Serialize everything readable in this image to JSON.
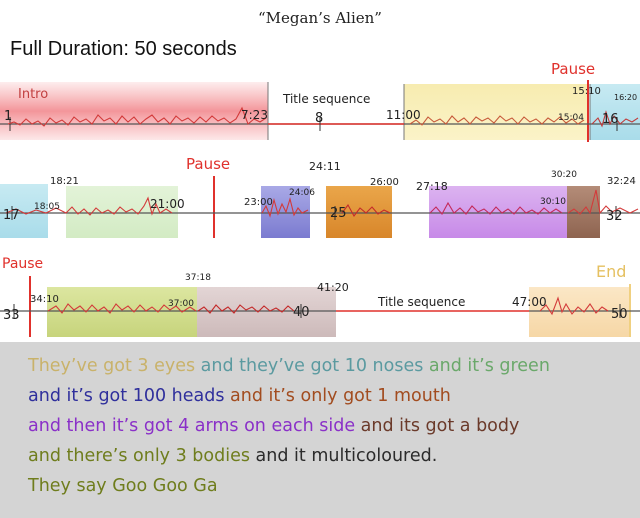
{
  "title": "“Megan’s Alien”",
  "subtitle": "Full Duration: 50 seconds",
  "colors": {
    "red": "#e0312c",
    "dark": "#2b2b2b",
    "axis": "#555555",
    "blue": "#2f2f9c",
    "brown": "#a24c1f",
    "purple": "#8a30c8",
    "olive": "#6f7d1d",
    "teal": "#5b9aa0",
    "gold": "#c9b26a",
    "green": "#6aa86a"
  },
  "rows": [
    {
      "labels": [
        {
          "text": "Intro",
          "color": "#c24040"
        },
        {
          "text": "Title sequence",
          "color": "#222"
        },
        {
          "text": "Pause",
          "color": "#e0312c"
        },
        {
          "text": "7:23",
          "color": "#222"
        },
        {
          "text": "11:00",
          "color": "#222"
        },
        {
          "text": "15:10",
          "color": "#222"
        },
        {
          "text": "15:04",
          "color": "#222"
        },
        {
          "text": "16:20",
          "color": "#222"
        },
        {
          "text": "1",
          "color": "#222"
        },
        {
          "text": "8",
          "color": "#222"
        },
        {
          "text": "16",
          "color": "#222"
        }
      ]
    },
    {
      "labels": [
        {
          "text": "Pause",
          "color": "#e0312c"
        },
        {
          "text": "18:21",
          "color": "#222"
        },
        {
          "text": "18:05",
          "color": "#222"
        },
        {
          "text": "21:00",
          "color": "#222"
        },
        {
          "text": "24:11",
          "color": "#222"
        },
        {
          "text": "24:06",
          "color": "#222"
        },
        {
          "text": "23:00",
          "color": "#222"
        },
        {
          "text": "26:00",
          "color": "#222"
        },
        {
          "text": "27:18",
          "color": "#222"
        },
        {
          "text": "30:20",
          "color": "#222"
        },
        {
          "text": "30:10",
          "color": "#222"
        },
        {
          "text": "32:24",
          "color": "#222"
        },
        {
          "text": "17",
          "color": "#222"
        },
        {
          "text": "25",
          "color": "#222"
        },
        {
          "text": "32",
          "color": "#222"
        }
      ]
    },
    {
      "labels": [
        {
          "text": "Pause",
          "color": "#e0312c"
        },
        {
          "text": "End",
          "color": "#e5c060"
        },
        {
          "text": "Title sequence",
          "color": "#222"
        },
        {
          "text": "34:10",
          "color": "#222"
        },
        {
          "text": "37:18",
          "color": "#222"
        },
        {
          "text": "37:00",
          "color": "#222"
        },
        {
          "text": "41:20",
          "color": "#222"
        },
        {
          "text": "47:00",
          "color": "#222"
        },
        {
          "text": "33",
          "color": "#222"
        },
        {
          "text": "40",
          "color": "#222"
        },
        {
          "text": "50",
          "color": "#222"
        }
      ]
    }
  ],
  "story": [
    [
      {
        "text": "They’ve got 3 eyes",
        "color": "#c9b26a"
      },
      {
        "text": "  and they’ve got 10 noses",
        "color": "#5b9aa0"
      },
      {
        "text": " and it’s green",
        "color": "#6aa86a"
      }
    ],
    [
      {
        "text": "and it’s got 100 heads",
        "color": "#2f2f9c"
      },
      {
        "text": " and it’s only got 1 mouth",
        "color": "#a24c1f"
      }
    ],
    [
      {
        "text": "and then it’s got 4 arms on each side",
        "color": "#8a30c8"
      },
      {
        "text": " and its got a body",
        "color": "#6b3a2a"
      }
    ],
    [
      {
        "text": "and there’s only 3 bodies",
        "color": "#6f7d1d"
      },
      {
        "text": " and it multicoloured.",
        "color": "#2b2b2b"
      }
    ],
    [
      {
        "text": "They say Goo Goo Ga",
        "color": "#6f7d1d"
      }
    ]
  ]
}
